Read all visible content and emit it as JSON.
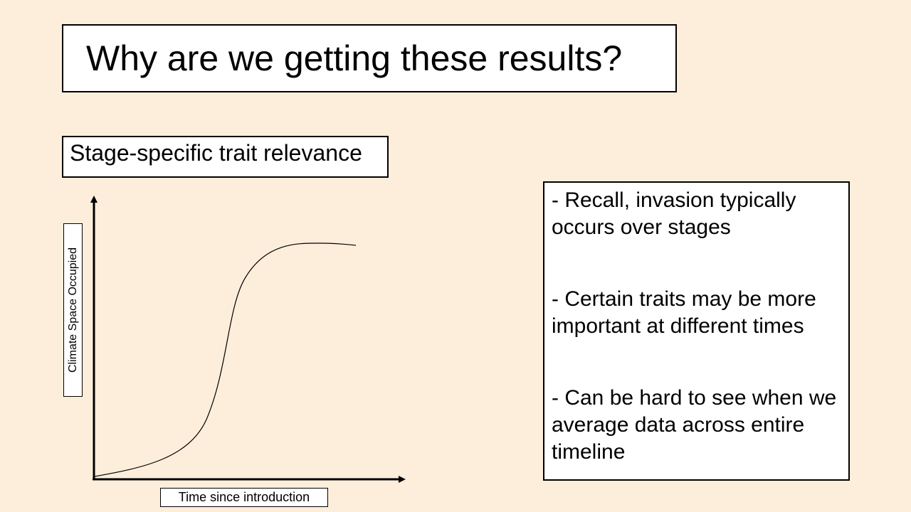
{
  "slide": {
    "title": "Why are we getting these results?",
    "subtitle": "Stage-specific trait relevance",
    "bullets": [
      "- Recall, invasion typically occurs over stages",
      "- Certain traits may be more important at different times",
      "- Can be hard to see when we average data across entire timeline"
    ]
  },
  "diagram": {
    "y_axis_label": "Climate Space Occupied",
    "x_axis_label": "Time since introduction",
    "curve": "sigmoid"
  },
  "colors": {
    "background": "#fdeedb",
    "box_fill": "#ffffff",
    "stroke": "#000000"
  }
}
